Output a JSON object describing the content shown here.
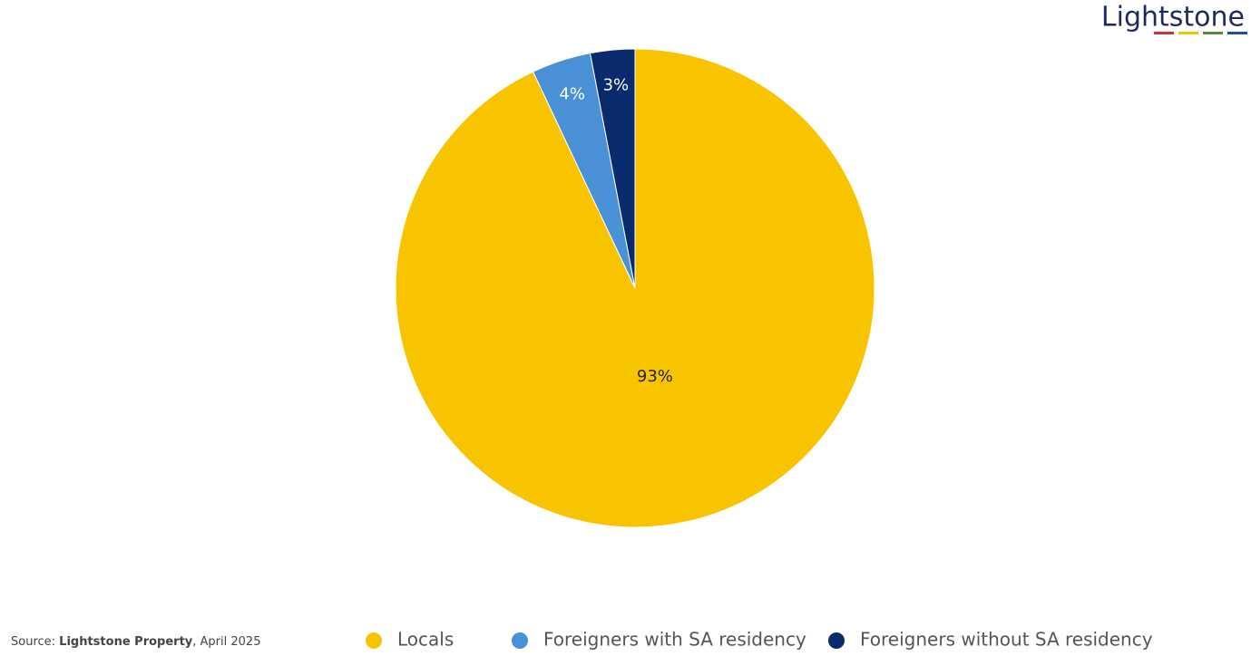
{
  "brand": "Lightstone",
  "source": {
    "prefix": "Source:",
    "name": "Lightstone Property",
    "date": ", April 2025"
  },
  "chart_data": {
    "type": "pie",
    "categories": [
      "Locals",
      "Foreigners with SA residency",
      "Foreigners without SA residency"
    ],
    "values": [
      93,
      4,
      3
    ],
    "value_labels": [
      "93%",
      "4%",
      "3%"
    ],
    "colors": [
      "#f8c400",
      "#4a90d6",
      "#0a2a6e"
    ],
    "label_colors": [
      "#222222",
      "#ffffff",
      "#ffffff"
    ],
    "legend": "bottom"
  }
}
